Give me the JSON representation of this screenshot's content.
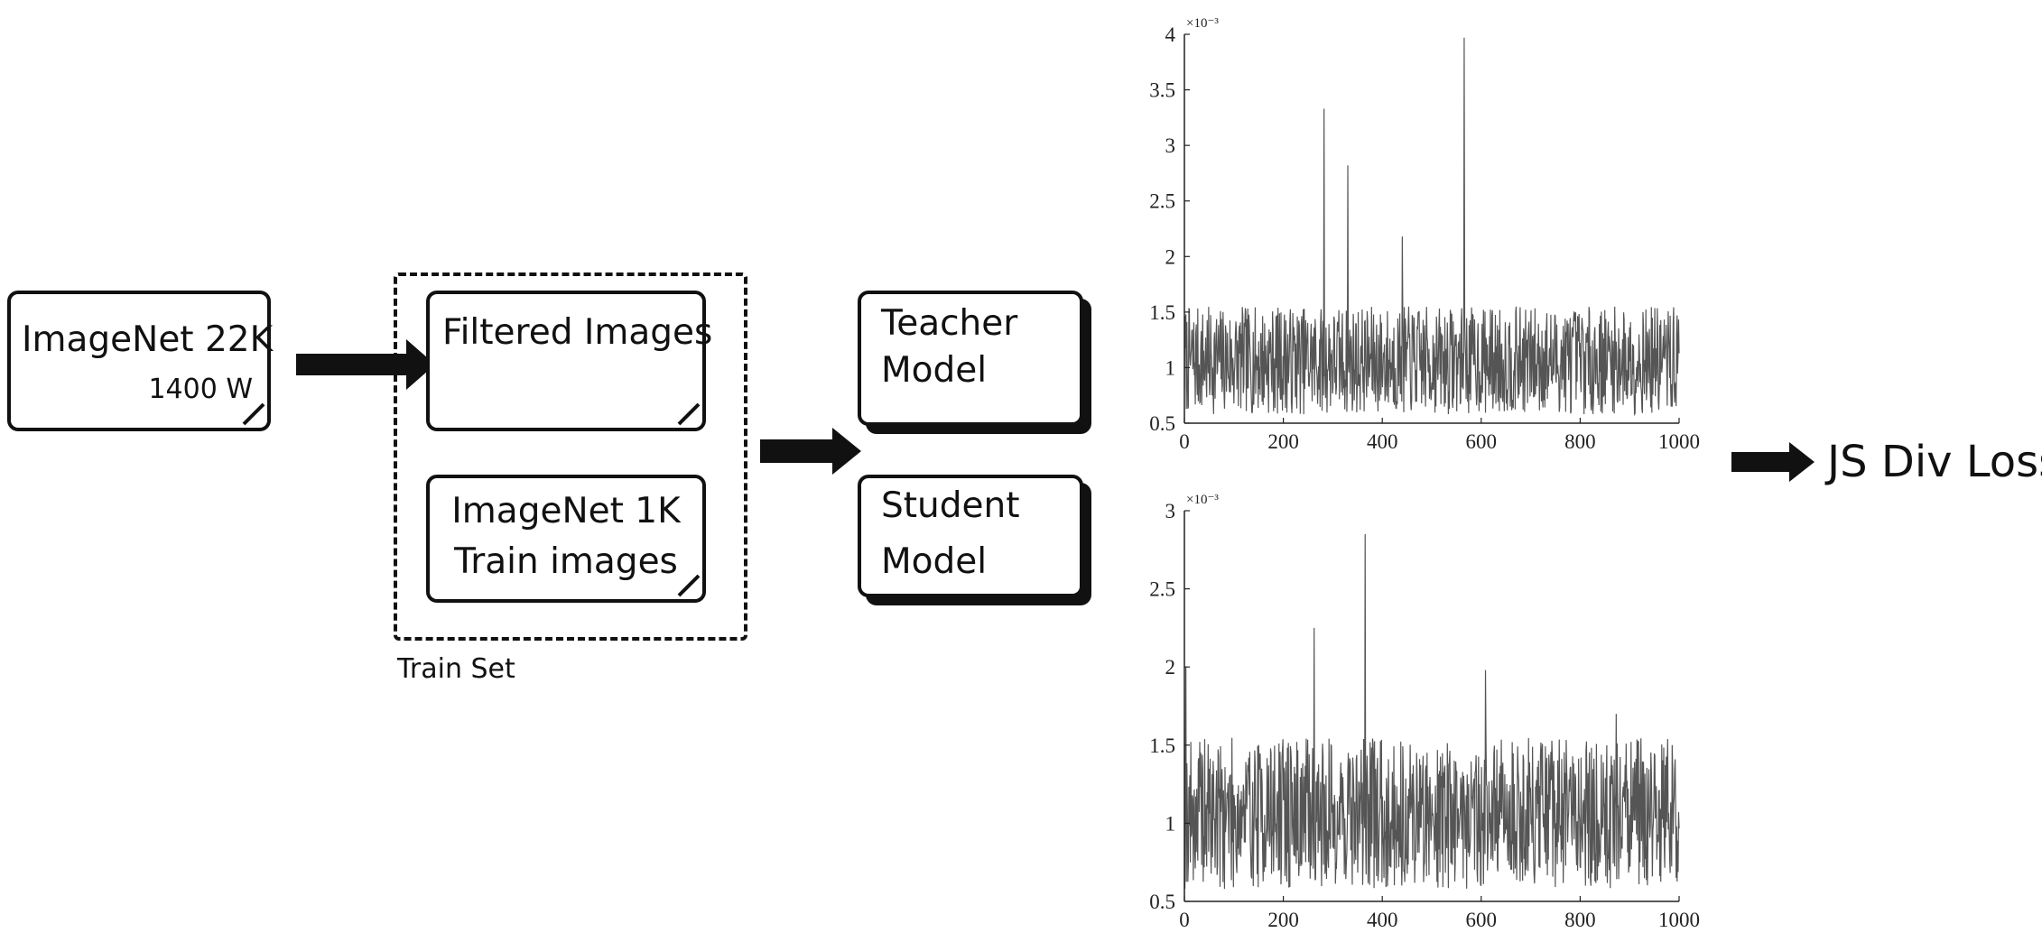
{
  "source_box": {
    "title": "ImageNet 22K",
    "count": "1400 W"
  },
  "train_set": {
    "label": "Train Set",
    "filtered": {
      "title": "Filtered Images"
    },
    "imagenet1k": {
      "line1": "ImageNet 1K",
      "line2": "Train images"
    }
  },
  "teacher": {
    "line1": "Teacher",
    "line2": "Model"
  },
  "student": {
    "line1": "Student",
    "line2": "Model"
  },
  "output_label": "JS Div Loss",
  "icons": [
    "arrow-right-icon",
    "folded-corner-icon"
  ],
  "chart_data": [
    {
      "type": "line",
      "name": "teacher-output-distribution",
      "title": "",
      "xlabel": "",
      "ylabel": "",
      "scale_label": "×10⁻³",
      "xlim": [
        0,
        1000
      ],
      "ylim": [
        0.5,
        4
      ],
      "xticks": [
        0,
        200,
        400,
        600,
        800,
        1000
      ],
      "yticks": [
        0.5,
        1,
        1.5,
        2,
        2.5,
        3,
        3.5,
        4
      ],
      "ytick_labels": [
        "0.5",
        "1",
        "1.5",
        "2",
        "2.5",
        "3",
        "3.5",
        "4"
      ],
      "noise": {
        "n": 1000,
        "min": 0.58,
        "max": 1.55,
        "seed": 7
      },
      "spikes": [
        [
          282,
          3.33
        ],
        [
          330,
          2.82
        ],
        [
          440,
          2.18
        ],
        [
          565,
          3.97
        ]
      ],
      "color": "#555555"
    },
    {
      "type": "line",
      "name": "student-output-distribution",
      "title": "",
      "xlabel": "",
      "ylabel": "",
      "scale_label": "×10⁻³",
      "xlim": [
        0,
        1000
      ],
      "ylim": [
        0.5,
        3
      ],
      "xticks": [
        0,
        200,
        400,
        600,
        800,
        1000
      ],
      "yticks": [
        0.5,
        1,
        1.5,
        2,
        2.5,
        3
      ],
      "ytick_labels": [
        "0.5",
        "1",
        "1.5",
        "2",
        "2.5",
        "3"
      ],
      "noise": {
        "n": 1000,
        "min": 0.58,
        "max": 1.55,
        "seed": 19
      },
      "spikes": [
        [
          3,
          2.0
        ],
        [
          262,
          2.25
        ],
        [
          365,
          2.85
        ],
        [
          608,
          1.98
        ],
        [
          872,
          1.7
        ]
      ],
      "color": "#555555"
    }
  ]
}
